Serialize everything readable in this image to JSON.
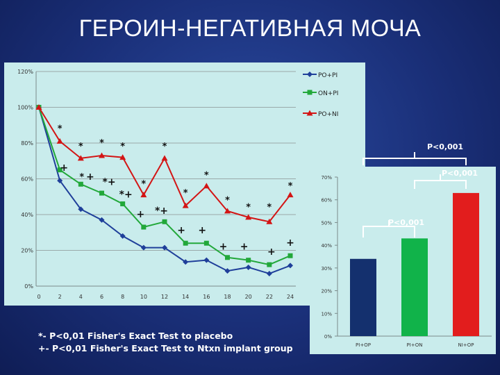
{
  "title": "ГЕРОИН-НЕГАТИВНАЯ МОЧА",
  "footnotes": [
    "*- P<0,01 Fisher's Exact Test to placebo",
    " +- P<0,01 Fisher's Exact Test to Ntxn implant group"
  ],
  "colors": {
    "po_pi": "#1f3f9a",
    "on_pi": "#22a83a",
    "po_ni": "#d31515",
    "bar_pi_op": "#14306e",
    "bar_pi_on": "#11b34a",
    "bar_ni_op": "#e21d1d"
  },
  "chart_data": [
    {
      "type": "line",
      "x": [
        0,
        2,
        4,
        6,
        8,
        10,
        12,
        14,
        16,
        18,
        20,
        22,
        24
      ],
      "xticks": [
        "0",
        "2",
        "4",
        "6",
        "8",
        "10",
        "12",
        "14",
        "16",
        "18",
        "20",
        "22",
        "24"
      ],
      "ylim": [
        0,
        120
      ],
      "yticks": [
        "0%",
        "20%",
        "40%",
        "60%",
        "80%",
        "100%",
        "120%"
      ],
      "grid": true,
      "legend_position": "top-right",
      "series": [
        {
          "name": "PO+PI",
          "values": [
            100,
            59,
            43,
            37,
            28,
            21.5,
            21.5,
            13.5,
            14.5,
            8.5,
            10.5,
            7,
            11.5
          ]
        },
        {
          "name": "ON+PI",
          "values": [
            100,
            65,
            57,
            52,
            46,
            33,
            36,
            24,
            24,
            16,
            14.5,
            12,
            17
          ]
        },
        {
          "name": "PO+NI",
          "values": [
            100,
            81,
            71.5,
            73,
            72,
            51,
            71.5,
            45,
            56,
            42,
            38.5,
            36,
            51
          ]
        }
      ],
      "annotations": [
        {
          "text": "*",
          "x": 2,
          "y": 88
        },
        {
          "text": "*",
          "x": 4,
          "y": 78
        },
        {
          "text": "*",
          "x": 6,
          "y": 80
        },
        {
          "text": "*",
          "x": 8,
          "y": 78
        },
        {
          "text": "*",
          "x": 10,
          "y": 57
        },
        {
          "text": "*",
          "x": 12,
          "y": 78
        },
        {
          "text": "*",
          "x": 14,
          "y": 52
        },
        {
          "text": "*",
          "x": 16,
          "y": 62
        },
        {
          "text": "*",
          "x": 18,
          "y": 48
        },
        {
          "text": "*",
          "x": 20,
          "y": 44
        },
        {
          "text": "*",
          "x": 22,
          "y": 44
        },
        {
          "text": "*",
          "x": 24,
          "y": 56
        },
        {
          "text": "+",
          "x": 2.4,
          "y": 66
        },
        {
          "text": "*",
          "x": 4.1,
          "y": 61
        },
        {
          "text": "+",
          "x": 4.9,
          "y": 61
        },
        {
          "text": "*+",
          "x": 6.7,
          "y": 58
        },
        {
          "text": "*+",
          "x": 8.3,
          "y": 51
        },
        {
          "text": "+",
          "x": 9.7,
          "y": 40
        },
        {
          "text": "*+",
          "x": 11.7,
          "y": 42
        },
        {
          "text": "+",
          "x": 13.6,
          "y": 31
        },
        {
          "text": "+",
          "x": 15.6,
          "y": 31
        },
        {
          "text": "+",
          "x": 17.6,
          "y": 22
        },
        {
          "text": "+",
          "x": 19.6,
          "y": 22
        },
        {
          "text": "+",
          "x": 22.2,
          "y": 19
        },
        {
          "text": "+",
          "x": 24,
          "y": 24
        }
      ]
    },
    {
      "type": "bar",
      "categories": [
        "PI+OP",
        "PI+ON",
        "NI+OP"
      ],
      "values": [
        34,
        43,
        63
      ],
      "ylim": [
        0,
        70
      ],
      "yticks": [
        "0%",
        "10%",
        "20%",
        "30%",
        "40%",
        "50%",
        "60%",
        "70%"
      ],
      "grid": false,
      "annotations": [
        {
          "text": "P<0,001",
          "between": [
            "PI+OP",
            "PI+ON"
          ]
        },
        {
          "text": "P<0,001",
          "between": [
            "PI+ON",
            "NI+OP"
          ]
        },
        {
          "text": "P<0,001",
          "between": [
            "PI+OP",
            "NI+OP"
          ]
        }
      ]
    }
  ]
}
